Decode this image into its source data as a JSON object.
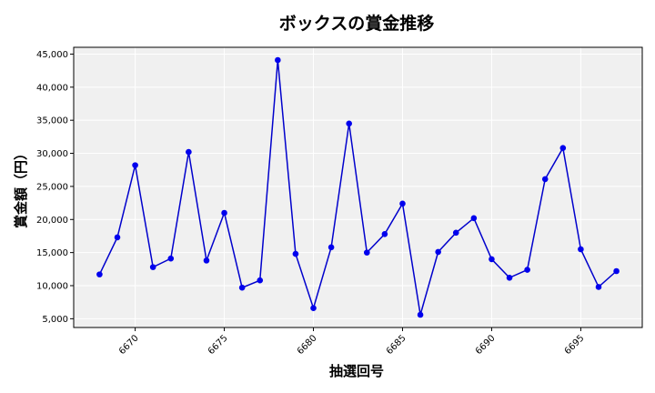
{
  "chart_data": {
    "type": "line",
    "title": "ボックスの賞金推移",
    "xlabel": "抽選回号",
    "ylabel": "賞金額（円）",
    "x": [
      6668,
      6669,
      6670,
      6671,
      6672,
      6673,
      6674,
      6675,
      6676,
      6677,
      6678,
      6679,
      6680,
      6681,
      6682,
      6683,
      6684,
      6685,
      6686,
      6687,
      6688,
      6689,
      6690,
      6691,
      6692,
      6693,
      6694,
      6695,
      6696,
      6697
    ],
    "values": [
      11700,
      17300,
      28200,
      12800,
      14100,
      30200,
      13800,
      21000,
      9700,
      10800,
      44100,
      14800,
      6600,
      15800,
      34500,
      15000,
      17800,
      22400,
      5600,
      15100,
      18000,
      20200,
      14000,
      11200,
      12400,
      26100,
      30800,
      15500,
      9800,
      12200
    ],
    "xticks": [
      6670,
      6675,
      6680,
      6685,
      6690,
      6695
    ],
    "yticks": [
      5000,
      10000,
      15000,
      20000,
      25000,
      30000,
      35000,
      40000,
      45000
    ],
    "ytick_labels": [
      "5,000",
      "10,000",
      "15,000",
      "20,000",
      "25,000",
      "30,000",
      "35,000",
      "40,000",
      "45,000"
    ],
    "xlim": [
      6666.55,
      6698.45
    ],
    "ylim": [
      3675,
      46025
    ],
    "grid": true,
    "line_color": "#0000cc",
    "marker_color": "#0000ee",
    "plot_bg": "#f0f0f0"
  }
}
